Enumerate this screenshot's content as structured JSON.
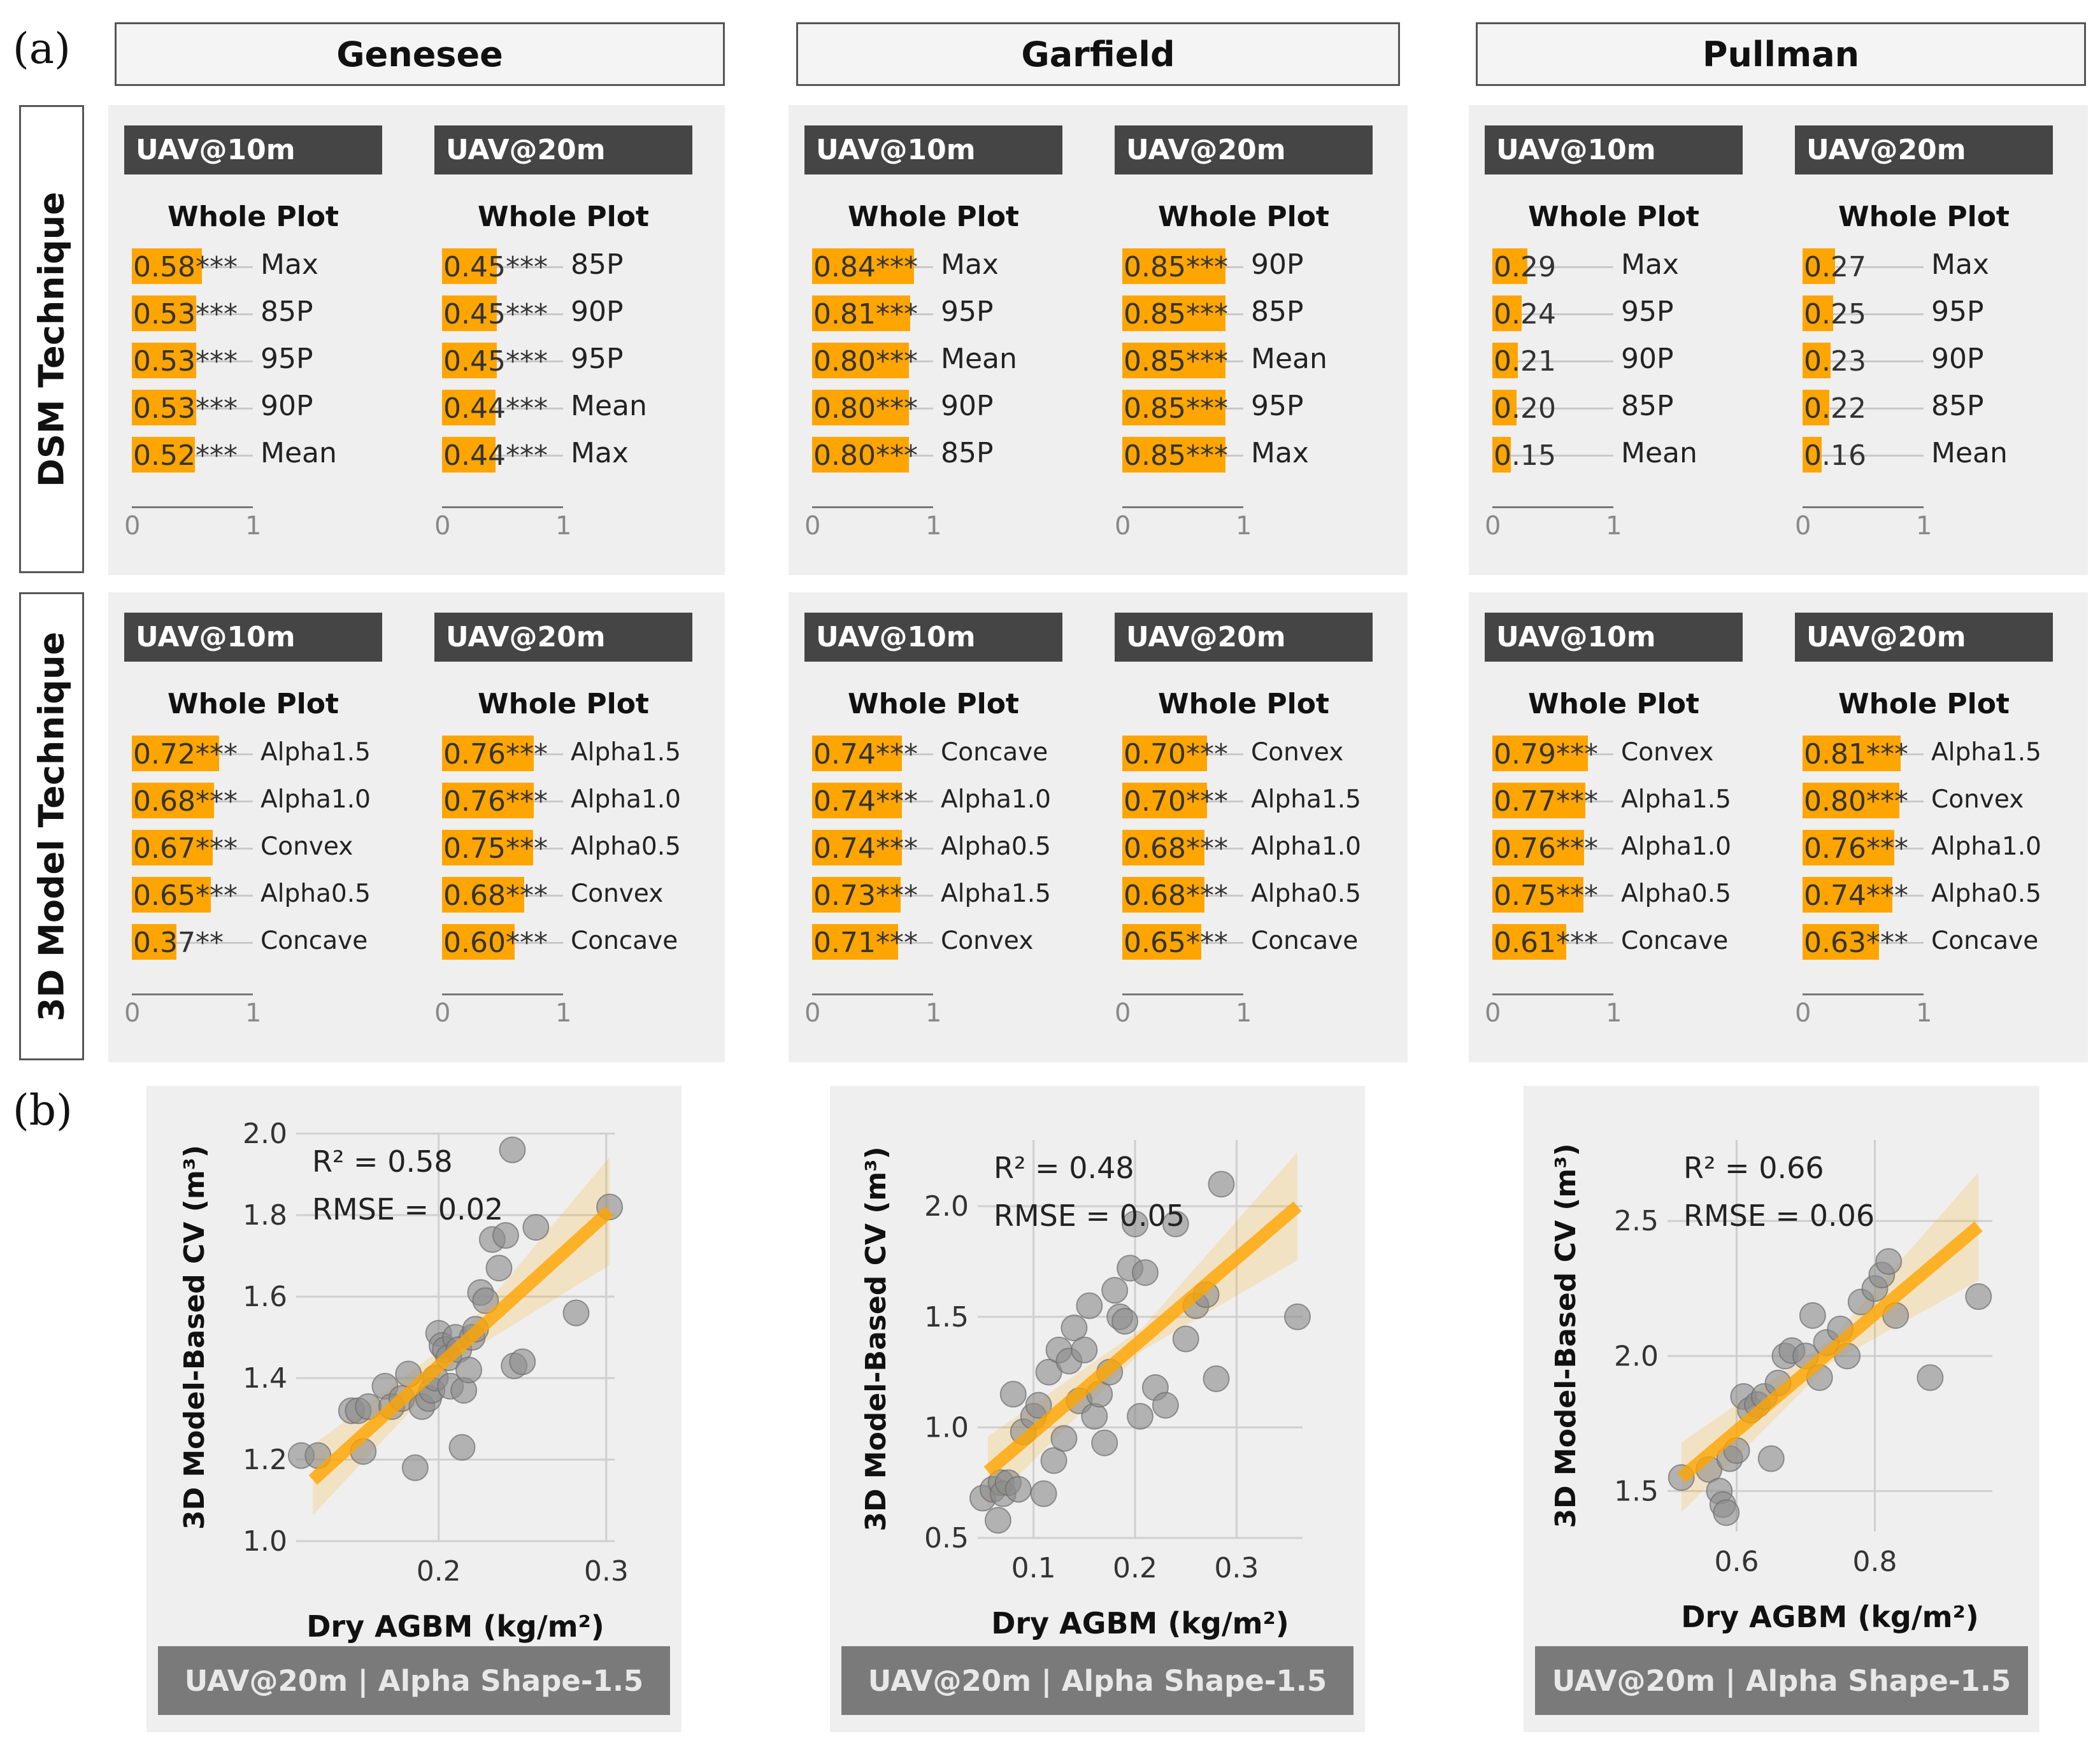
{
  "panel_labels": {
    "a": "(a)",
    "b": "(b)"
  },
  "sites": [
    "Genesee",
    "Garfield",
    "Pullman"
  ],
  "techniques": [
    "DSM Technique",
    "3D Model Technique"
  ],
  "subtitle": "Whole Plot",
  "axis_ticks": [
    "0",
    "1"
  ],
  "colors": {
    "bar": "#FFA500",
    "tag": "#454545",
    "panel": "#efefef",
    "point": "#8c8c8c",
    "fit": "#FFA500"
  },
  "chart_data": [
    {
      "type": "bar",
      "site": "Genesee",
      "technique": "DSM Technique",
      "platform": "UAV@10m",
      "title": "Whole Plot",
      "xlim": [
        0,
        1
      ],
      "categories": [
        "Max",
        "85P",
        "95P",
        "90P",
        "Mean"
      ],
      "values": [
        0.58,
        0.53,
        0.53,
        0.53,
        0.52
      ],
      "significance": [
        "***",
        "***",
        "***",
        "***",
        "***"
      ]
    },
    {
      "type": "bar",
      "site": "Genesee",
      "technique": "DSM Technique",
      "platform": "UAV@20m",
      "title": "Whole Plot",
      "xlim": [
        0,
        1
      ],
      "categories": [
        "85P",
        "90P",
        "95P",
        "Mean",
        "Max"
      ],
      "values": [
        0.45,
        0.45,
        0.45,
        0.44,
        0.44
      ],
      "significance": [
        "***",
        "***",
        "***",
        "***",
        "***"
      ]
    },
    {
      "type": "bar",
      "site": "Garfield",
      "technique": "DSM Technique",
      "platform": "UAV@10m",
      "title": "Whole Plot",
      "xlim": [
        0,
        1
      ],
      "categories": [
        "Max",
        "95P",
        "Mean",
        "90P",
        "85P"
      ],
      "values": [
        0.84,
        0.81,
        0.8,
        0.8,
        0.8
      ],
      "significance": [
        "***",
        "***",
        "***",
        "***",
        "***"
      ]
    },
    {
      "type": "bar",
      "site": "Garfield",
      "technique": "DSM Technique",
      "platform": "UAV@20m",
      "title": "Whole Plot",
      "xlim": [
        0,
        1
      ],
      "categories": [
        "90P",
        "85P",
        "Mean",
        "95P",
        "Max"
      ],
      "values": [
        0.85,
        0.85,
        0.85,
        0.85,
        0.85
      ],
      "significance": [
        "***",
        "***",
        "***",
        "***",
        "***"
      ]
    },
    {
      "type": "bar",
      "site": "Pullman",
      "technique": "DSM Technique",
      "platform": "UAV@10m",
      "title": "Whole Plot",
      "xlim": [
        0,
        1
      ],
      "categories": [
        "Max",
        "95P",
        "90P",
        "85P",
        "Mean"
      ],
      "values": [
        0.29,
        0.24,
        0.21,
        0.2,
        0.15
      ],
      "significance": [
        "",
        "",
        "",
        "",
        ""
      ]
    },
    {
      "type": "bar",
      "site": "Pullman",
      "technique": "DSM Technique",
      "platform": "UAV@20m",
      "title": "Whole Plot",
      "xlim": [
        0,
        1
      ],
      "categories": [
        "Max",
        "95P",
        "90P",
        "85P",
        "Mean"
      ],
      "values": [
        0.27,
        0.25,
        0.23,
        0.22,
        0.16
      ],
      "significance": [
        "",
        "",
        "",
        "",
        ""
      ]
    },
    {
      "type": "bar",
      "site": "Genesee",
      "technique": "3D Model Technique",
      "platform": "UAV@10m",
      "title": "Whole Plot",
      "xlim": [
        0,
        1
      ],
      "categories": [
        "Alpha1.5",
        "Alpha1.0",
        "Convex",
        "Alpha0.5",
        "Concave"
      ],
      "values": [
        0.72,
        0.68,
        0.67,
        0.65,
        0.37
      ],
      "significance": [
        "***",
        "***",
        "***",
        "***",
        "**"
      ]
    },
    {
      "type": "bar",
      "site": "Genesee",
      "technique": "3D Model Technique",
      "platform": "UAV@20m",
      "title": "Whole Plot",
      "xlim": [
        0,
        1
      ],
      "categories": [
        "Alpha1.5",
        "Alpha1.0",
        "Alpha0.5",
        "Convex",
        "Concave"
      ],
      "values": [
        0.76,
        0.76,
        0.75,
        0.68,
        0.6
      ],
      "significance": [
        "***",
        "***",
        "***",
        "***",
        "***"
      ]
    },
    {
      "type": "bar",
      "site": "Garfield",
      "technique": "3D Model Technique",
      "platform": "UAV@10m",
      "title": "Whole Plot",
      "xlim": [
        0,
        1
      ],
      "categories": [
        "Concave",
        "Alpha1.0",
        "Alpha0.5",
        "Alpha1.5",
        "Convex"
      ],
      "values": [
        0.74,
        0.74,
        0.74,
        0.73,
        0.71
      ],
      "significance": [
        "***",
        "***",
        "***",
        "***",
        "***"
      ]
    },
    {
      "type": "bar",
      "site": "Garfield",
      "technique": "3D Model Technique",
      "platform": "UAV@20m",
      "title": "Whole Plot",
      "xlim": [
        0,
        1
      ],
      "categories": [
        "Convex",
        "Alpha1.5",
        "Alpha1.0",
        "Alpha0.5",
        "Concave"
      ],
      "values": [
        0.7,
        0.7,
        0.68,
        0.68,
        0.65
      ],
      "significance": [
        "***",
        "***",
        "***",
        "***",
        "***"
      ]
    },
    {
      "type": "bar",
      "site": "Pullman",
      "technique": "3D Model Technique",
      "platform": "UAV@10m",
      "title": "Whole Plot",
      "xlim": [
        0,
        1
      ],
      "categories": [
        "Convex",
        "Alpha1.5",
        "Alpha1.0",
        "Alpha0.5",
        "Concave"
      ],
      "values": [
        0.79,
        0.77,
        0.76,
        0.75,
        0.61
      ],
      "significance": [
        "***",
        "***",
        "***",
        "***",
        "***"
      ]
    },
    {
      "type": "bar",
      "site": "Pullman",
      "technique": "3D Model Technique",
      "platform": "UAV@20m",
      "title": "Whole Plot",
      "xlim": [
        0,
        1
      ],
      "categories": [
        "Alpha1.5",
        "Convex",
        "Alpha1.0",
        "Alpha0.5",
        "Concave"
      ],
      "values": [
        0.81,
        0.8,
        0.76,
        0.74,
        0.63
      ],
      "significance": [
        "***",
        "***",
        "***",
        "***",
        "***"
      ]
    },
    {
      "type": "scatter",
      "site": "Genesee",
      "xlabel": "Dry AGBM (kg/m²)",
      "ylabel": "3D Model-Based CV (m³)",
      "r2": "R² = 0.58",
      "rmse": "RMSE = 0.02",
      "caption": "UAV@20m | Alpha Shape-1.5",
      "xlim": [
        0.115,
        0.305
      ],
      "ylim": [
        1.0,
        2.0
      ],
      "xticks": [
        0.2,
        0.3
      ],
      "yticks": [
        1.0,
        1.2,
        1.4,
        1.6,
        1.8,
        2.0
      ],
      "xtick_labels": [
        "0.2",
        "0.3"
      ],
      "ytick_labels": [
        "1.0",
        "1.2",
        "1.4",
        "1.6",
        "1.8",
        "2.0"
      ],
      "fit": [
        [
          0.125,
          1.15
        ],
        [
          0.302,
          1.81
        ]
      ],
      "x": [
        0.118,
        0.128,
        0.148,
        0.152,
        0.155,
        0.158,
        0.168,
        0.172,
        0.178,
        0.182,
        0.186,
        0.19,
        0.194,
        0.196,
        0.198,
        0.2,
        0.202,
        0.204,
        0.206,
        0.207,
        0.21,
        0.212,
        0.214,
        0.215,
        0.218,
        0.22,
        0.222,
        0.225,
        0.228,
        0.232,
        0.236,
        0.24,
        0.244,
        0.245,
        0.25,
        0.258,
        0.282,
        0.302
      ],
      "y": [
        1.21,
        1.21,
        1.32,
        1.32,
        1.22,
        1.33,
        1.38,
        1.33,
        1.35,
        1.41,
        1.18,
        1.33,
        1.35,
        1.37,
        1.4,
        1.51,
        1.48,
        1.47,
        1.45,
        1.38,
        1.5,
        1.47,
        1.23,
        1.37,
        1.42,
        1.5,
        1.52,
        1.61,
        1.59,
        1.74,
        1.67,
        1.75,
        1.96,
        1.43,
        1.44,
        1.77,
        1.56,
        1.82
      ]
    },
    {
      "type": "scatter",
      "site": "Garfield",
      "xlabel": "Dry AGBM (kg/m²)",
      "ylabel": "3D Model-Based CV (m³)",
      "r2": "R² = 0.48",
      "rmse": "RMSE = 0.05",
      "caption": "UAV@20m | Alpha Shape-1.5",
      "xlim": [
        0.045,
        0.365
      ],
      "ylim": [
        0.5,
        2.3
      ],
      "xticks": [
        0.1,
        0.2,
        0.3
      ],
      "yticks": [
        0.5,
        1.0,
        1.5,
        2.0
      ],
      "xtick_labels": [
        "0.1",
        "0.2",
        "0.3"
      ],
      "ytick_labels": [
        "0.5",
        "1.0",
        "1.5",
        "2.0"
      ],
      "fit": [
        [
          0.055,
          0.8
        ],
        [
          0.36,
          2.0
        ]
      ],
      "x": [
        0.05,
        0.06,
        0.065,
        0.068,
        0.07,
        0.075,
        0.08,
        0.085,
        0.09,
        0.1,
        0.105,
        0.11,
        0.115,
        0.12,
        0.125,
        0.13,
        0.135,
        0.14,
        0.145,
        0.15,
        0.155,
        0.16,
        0.165,
        0.17,
        0.175,
        0.18,
        0.185,
        0.19,
        0.195,
        0.2,
        0.205,
        0.21,
        0.22,
        0.23,
        0.24,
        0.25,
        0.26,
        0.27,
        0.28,
        0.285,
        0.36
      ],
      "y": [
        0.68,
        0.72,
        0.58,
        0.75,
        0.7,
        0.75,
        1.15,
        0.72,
        0.98,
        1.05,
        1.1,
        0.7,
        1.25,
        0.85,
        1.35,
        0.95,
        1.3,
        1.45,
        1.12,
        1.35,
        1.55,
        1.05,
        1.15,
        0.93,
        1.25,
        1.62,
        1.5,
        1.48,
        1.72,
        1.92,
        1.05,
        1.7,
        1.18,
        1.1,
        1.92,
        1.4,
        1.55,
        1.6,
        1.22,
        2.1,
        1.5
      ]
    },
    {
      "type": "scatter",
      "site": "Pullman",
      "xlabel": "Dry AGBM (kg/m²)",
      "ylabel": "3D Model-Based CV (m³)",
      "r2": "R² = 0.66",
      "rmse": "RMSE = 0.06",
      "caption": "UAV@20m | Alpha Shape-1.5",
      "xlim": [
        0.5,
        0.97
      ],
      "ylim": [
        1.35,
        2.8
      ],
      "xticks": [
        0.6,
        0.8
      ],
      "yticks": [
        1.5,
        2.0,
        2.5
      ],
      "xtick_labels": [
        "0.6",
        "0.8"
      ],
      "ytick_labels": [
        "1.5",
        "2.0",
        "2.5"
      ],
      "fit": [
        [
          0.52,
          1.55
        ],
        [
          0.95,
          2.48
        ]
      ],
      "x": [
        0.52,
        0.56,
        0.575,
        0.58,
        0.585,
        0.59,
        0.6,
        0.61,
        0.62,
        0.63,
        0.64,
        0.65,
        0.66,
        0.67,
        0.68,
        0.7,
        0.71,
        0.72,
        0.73,
        0.75,
        0.76,
        0.78,
        0.8,
        0.81,
        0.82,
        0.83,
        0.88,
        0.95
      ],
      "y": [
        1.55,
        1.58,
        1.5,
        1.45,
        1.42,
        1.62,
        1.65,
        1.85,
        1.8,
        1.82,
        1.85,
        1.62,
        1.9,
        2.0,
        2.02,
        2.0,
        2.15,
        1.92,
        2.05,
        2.1,
        2.0,
        2.2,
        2.25,
        2.3,
        2.35,
        2.15,
        1.92,
        2.22
      ]
    }
  ]
}
